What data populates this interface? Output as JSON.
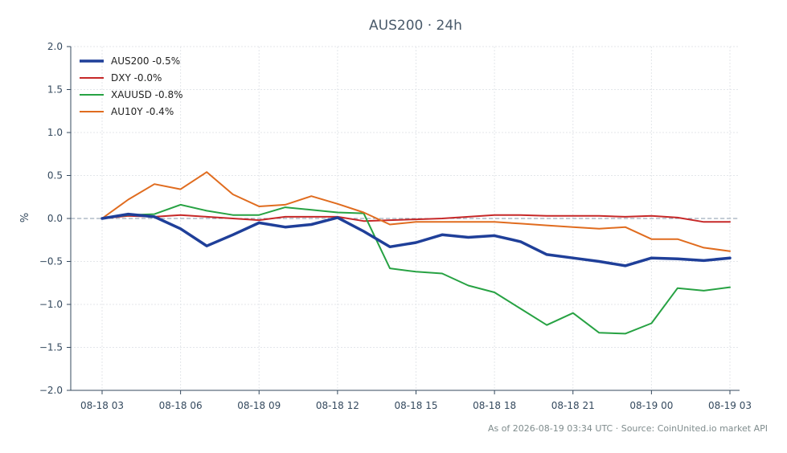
{
  "chart_data": {
    "type": "line",
    "title": "AUS200 · 24h",
    "xlabel": "",
    "ylabel": "%",
    "ylim": [
      -2.0,
      2.0
    ],
    "yticks": [
      2.0,
      1.5,
      1.0,
      0.5,
      0.0,
      -0.5,
      -1.0,
      -1.5,
      -2.0
    ],
    "ytick_labels": [
      "2.0",
      "1.5",
      "1.0",
      "0.5",
      "0.0",
      "−0.5",
      "−1.0",
      "−1.5",
      "−2.0"
    ],
    "x": [
      "08-18 03",
      "08-18 04",
      "08-18 05",
      "08-18 06",
      "08-18 07",
      "08-18 08",
      "08-18 09",
      "08-18 10",
      "08-18 11",
      "08-18 12",
      "08-18 13",
      "08-18 14",
      "08-18 15",
      "08-18 16",
      "08-18 17",
      "08-18 18",
      "08-18 19",
      "08-18 20",
      "08-18 21",
      "08-18 22",
      "08-18 23",
      "08-19 00",
      "08-19 01",
      "08-19 02",
      "08-19 03"
    ],
    "xticks": [
      "08-18 03",
      "08-18 06",
      "08-18 09",
      "08-18 12",
      "08-18 15",
      "08-18 18",
      "08-18 21",
      "08-19 00",
      "08-19 03"
    ],
    "grid": true,
    "legend_position": "top-left",
    "zero_line": true,
    "series": [
      {
        "name": "AUS200 -0.5%",
        "color": "#1f3f99",
        "width": 3.5,
        "values": [
          0.0,
          0.05,
          0.02,
          -0.12,
          -0.32,
          -0.19,
          -0.05,
          -0.1,
          -0.07,
          0.01,
          -0.15,
          -0.33,
          -0.28,
          -0.19,
          -0.22,
          -0.2,
          -0.27,
          -0.42,
          -0.46,
          -0.5,
          -0.55,
          -0.46,
          -0.47,
          -0.49,
          -0.46
        ]
      },
      {
        "name": "DXY -0.0%",
        "color": "#c62828",
        "width": 2,
        "values": [
          0.0,
          0.03,
          0.02,
          0.04,
          0.02,
          0.0,
          -0.02,
          0.02,
          0.02,
          0.02,
          -0.03,
          -0.02,
          -0.01,
          0.0,
          0.02,
          0.04,
          0.04,
          0.03,
          0.03,
          0.03,
          0.02,
          0.03,
          0.01,
          -0.04,
          -0.04
        ]
      },
      {
        "name": "XAUUSD -0.8%",
        "color": "#27a243",
        "width": 2,
        "values": [
          0.0,
          0.04,
          0.05,
          0.16,
          0.09,
          0.04,
          0.04,
          0.13,
          0.1,
          0.07,
          0.06,
          -0.58,
          -0.62,
          -0.64,
          -0.78,
          -0.86,
          -1.05,
          -1.24,
          -1.1,
          -1.33,
          -1.34,
          -1.22,
          -0.81,
          -0.84,
          -0.8
        ]
      },
      {
        "name": "AU10Y -0.4%",
        "color": "#e06c1f",
        "width": 2,
        "values": [
          0.0,
          0.22,
          0.4,
          0.34,
          0.54,
          0.28,
          0.14,
          0.16,
          0.26,
          0.17,
          0.07,
          -0.07,
          -0.04,
          -0.04,
          -0.04,
          -0.04,
          -0.06,
          -0.08,
          -0.1,
          -0.12,
          -0.1,
          -0.24,
          -0.24,
          -0.34,
          -0.38
        ]
      }
    ]
  },
  "footer": {
    "text": "As of 2026-08-19 03:34 UTC · Source: CoinUnited.io market API"
  },
  "colors": {
    "background": "#ffffff",
    "grid": "#e3e6ea",
    "axis": "#34495e",
    "zero_line": "#8a9aab"
  }
}
